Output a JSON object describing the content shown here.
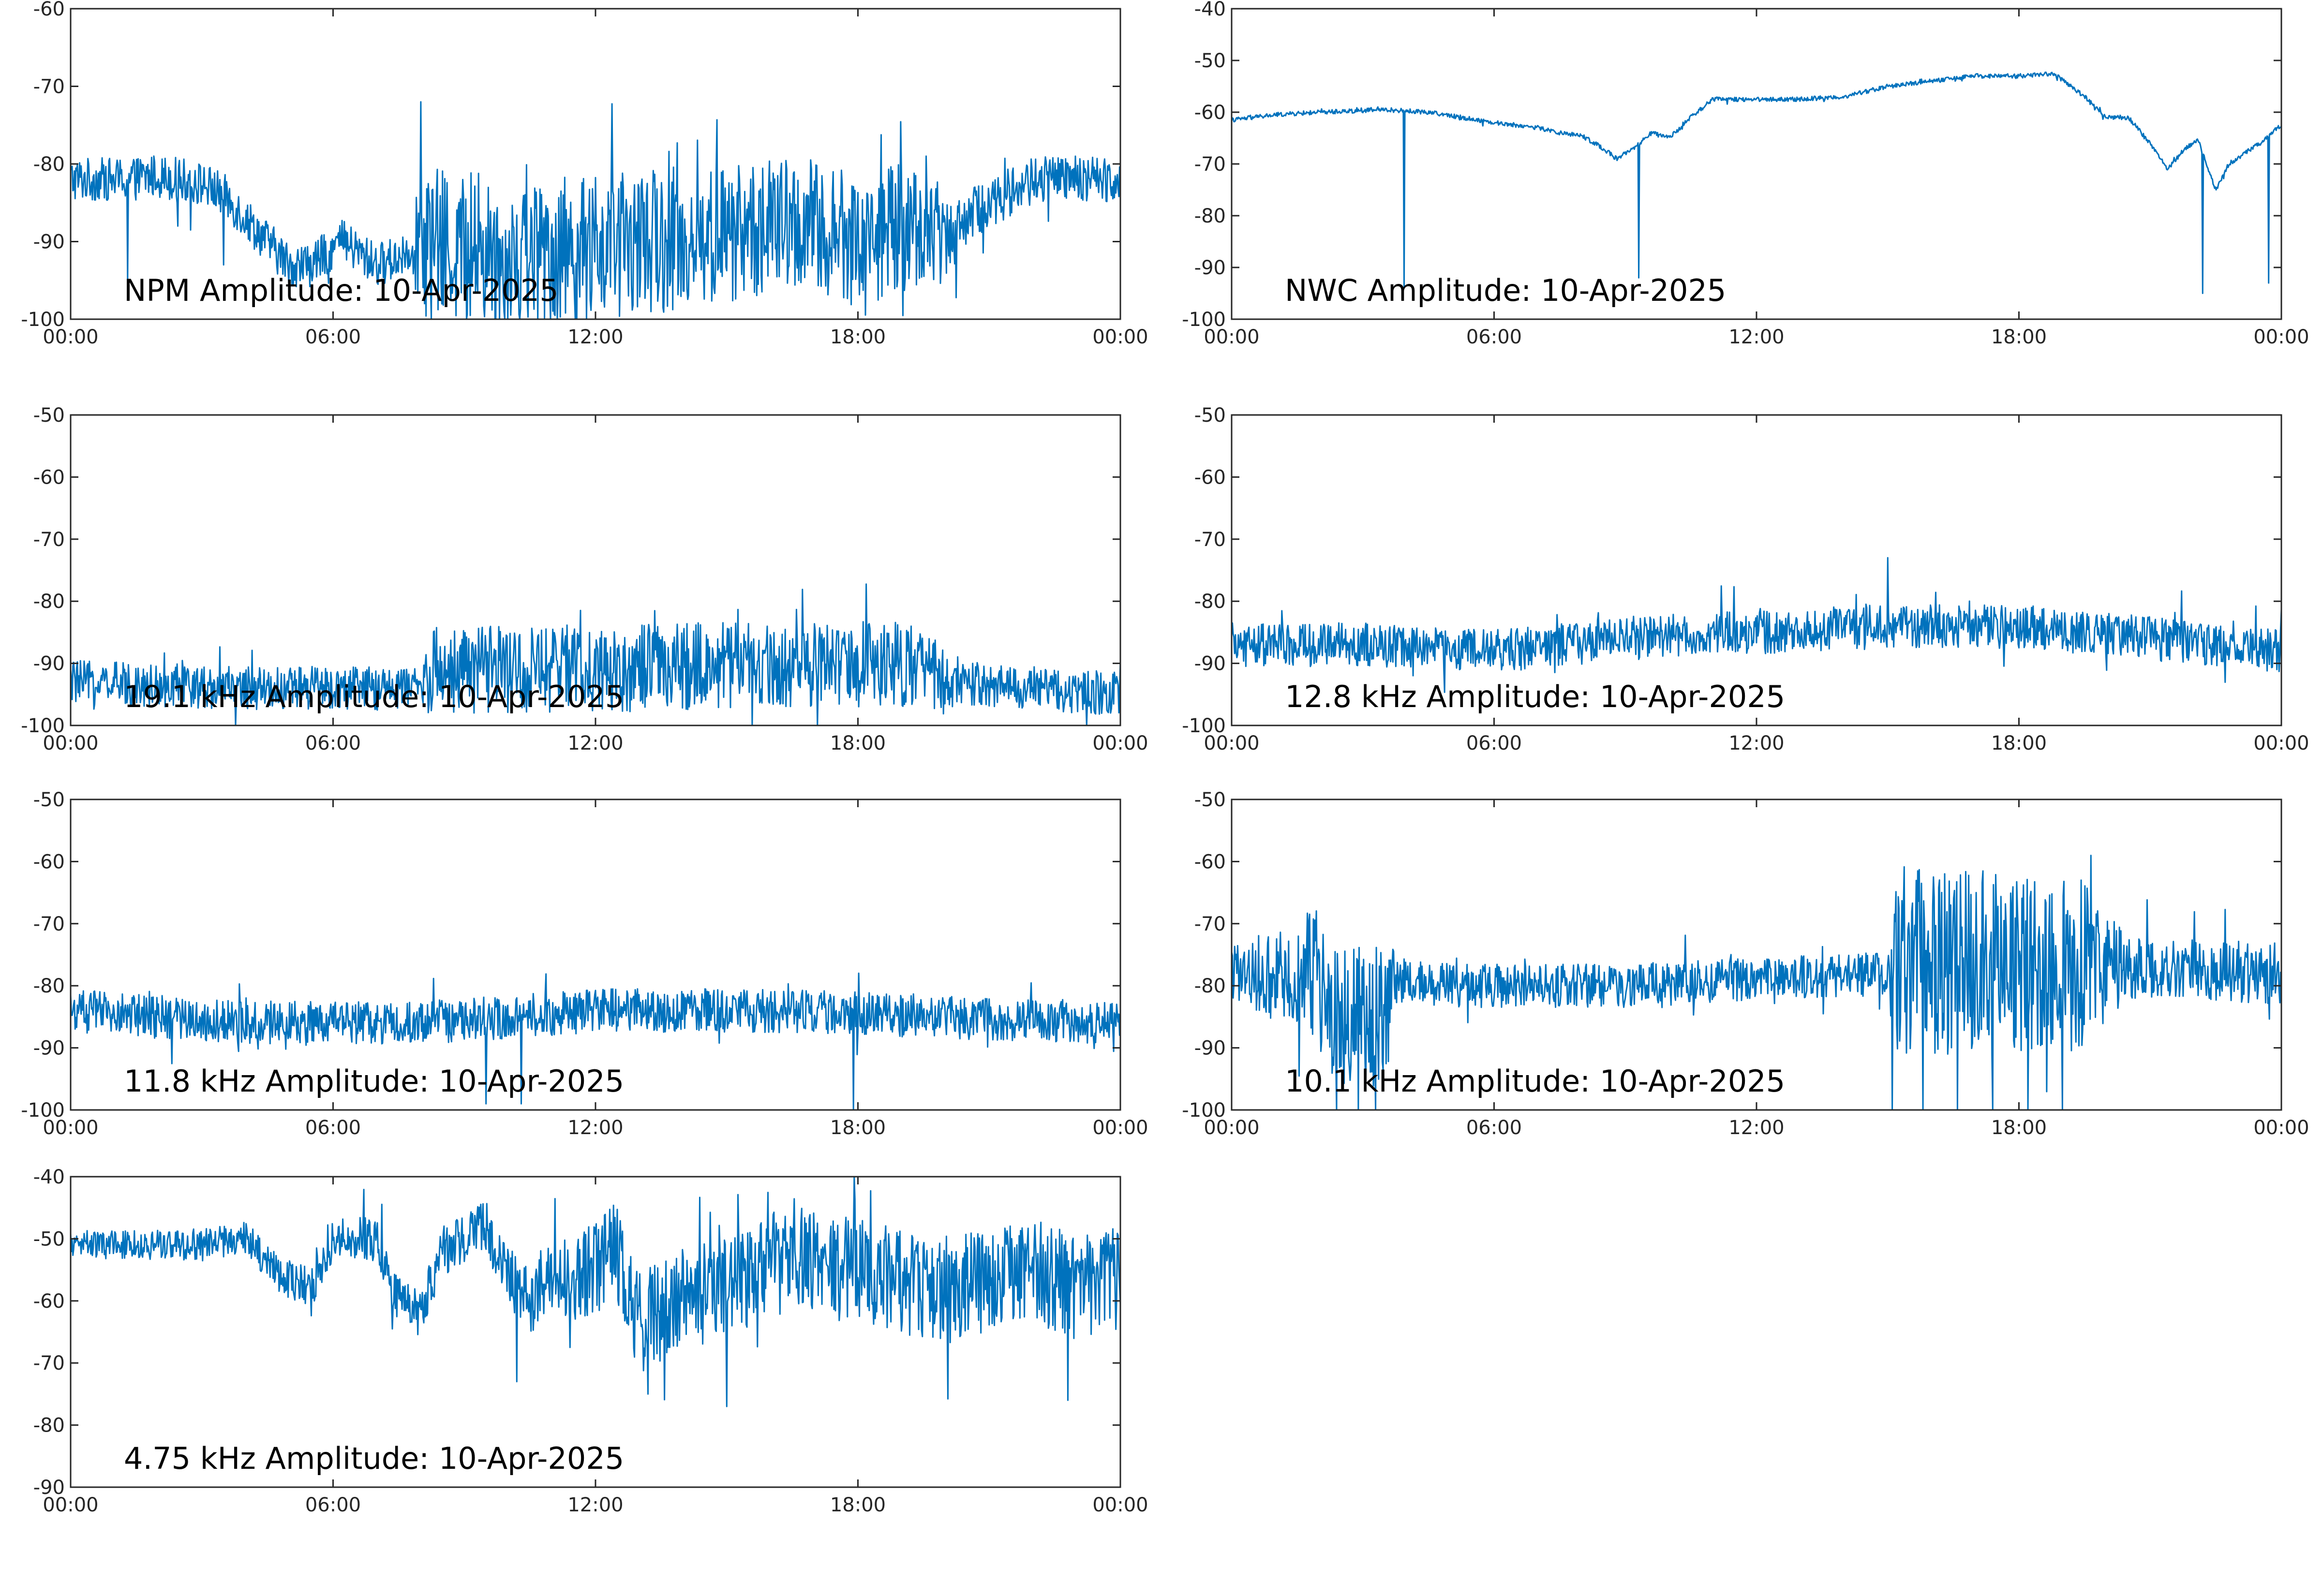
{
  "colors": {
    "series": "#0072bd",
    "axis": "#262626",
    "background": "#ffffff"
  },
  "chart_data": [
    {
      "type": "line",
      "title": "NPM Amplitude: 10-Apr-2025",
      "x_ticks": [
        "00:00",
        "06:00",
        "12:00",
        "18:00",
        "00:00"
      ],
      "xlim_hours": [
        0,
        24
      ],
      "ylim": [
        -100,
        -60
      ],
      "y_ticks": [
        -60,
        -70,
        -80,
        -90,
        -100
      ],
      "grid": false,
      "series": [
        {
          "baseline": [
            [
              0,
              -82
            ],
            [
              1.3,
              -82
            ],
            [
              2,
              -81.5
            ],
            [
              3,
              -82.5
            ],
            [
              3.5,
              -84
            ],
            [
              4,
              -87
            ],
            [
              4.5,
              -90
            ],
            [
              5,
              -93
            ],
            [
              5.5,
              -93
            ],
            [
              6.2,
              -90
            ],
            [
              7,
              -93
            ],
            [
              7.5,
              -92
            ],
            [
              8,
              -90
            ],
            [
              9,
              -91
            ],
            [
              10,
              -92
            ],
            [
              11,
              -91
            ],
            [
              12,
              -91
            ],
            [
              13,
              -90
            ],
            [
              14,
              -90
            ],
            [
              15,
              -89
            ],
            [
              16,
              -88
            ],
            [
              17,
              -88
            ],
            [
              17.5,
              -89
            ],
            [
              18,
              -90
            ],
            [
              19,
              -88
            ],
            [
              20,
              -89
            ],
            [
              21,
              -85
            ],
            [
              22,
              -82
            ],
            [
              23,
              -82
            ],
            [
              24,
              -82
            ]
          ],
          "noise": [
            [
              0,
              4
            ],
            [
              7.8,
              4
            ],
            [
              8,
              14
            ],
            [
              19.5,
              12
            ],
            [
              20.5,
              5
            ],
            [
              24,
              4
            ]
          ],
          "spikes": [
            [
              1.3,
              -95
            ],
            [
              3.5,
              -93
            ],
            [
              8.0,
              -72
            ],
            [
              8.1,
              -98
            ]
          ]
        }
      ]
    },
    {
      "type": "line",
      "title": "NWC Amplitude: 10-Apr-2025",
      "x_ticks": [
        "00:00",
        "06:00",
        "12:00",
        "18:00",
        "00:00"
      ],
      "xlim_hours": [
        0,
        24
      ],
      "ylim": [
        -100,
        -40
      ],
      "y_ticks": [
        -40,
        -50,
        -60,
        -70,
        -80,
        -90,
        -100
      ],
      "grid": false,
      "series": [
        {
          "baseline": [
            [
              0,
              -61.5
            ],
            [
              1,
              -60.5
            ],
            [
              2,
              -60
            ],
            [
              3.5,
              -59.5
            ],
            [
              4.5,
              -60
            ],
            [
              6,
              -62
            ],
            [
              7,
              -63
            ],
            [
              7.5,
              -64
            ],
            [
              8,
              -64.5
            ],
            [
              8.5,
              -67
            ],
            [
              8.8,
              -69
            ],
            [
              9.2,
              -67
            ],
            [
              9.6,
              -64
            ],
            [
              10,
              -65
            ],
            [
              10.5,
              -61
            ],
            [
              11,
              -57.5
            ],
            [
              12,
              -57.5
            ],
            [
              13,
              -57.5
            ],
            [
              14,
              -57
            ],
            [
              15,
              -55
            ],
            [
              16,
              -54
            ],
            [
              17,
              -53
            ],
            [
              18,
              -53
            ],
            [
              18.8,
              -52.5
            ],
            [
              19.5,
              -57
            ],
            [
              20,
              -61
            ],
            [
              20.5,
              -61
            ],
            [
              21,
              -66
            ],
            [
              21.4,
              -71
            ],
            [
              21.8,
              -67
            ],
            [
              22.1,
              -65.5
            ],
            [
              22.5,
              -75
            ],
            [
              22.8,
              -70
            ],
            [
              23.5,
              -66
            ],
            [
              24,
              -62.5
            ]
          ],
          "noise": [
            [
              0,
              0.6
            ],
            [
              24,
              0.6
            ]
          ],
          "spikes": [
            [
              3.95,
              -94
            ],
            [
              9.3,
              -92
            ],
            [
              22.2,
              -95
            ],
            [
              23.7,
              -93
            ]
          ]
        }
      ]
    },
    {
      "type": "line",
      "title": "19.1 kHz Amplitude: 10-Apr-2025",
      "x_ticks": [
        "00:00",
        "06:00",
        "12:00",
        "18:00",
        "00:00"
      ],
      "xlim_hours": [
        0,
        24
      ],
      "ylim": [
        -100,
        -50
      ],
      "y_ticks": [
        -50,
        -60,
        -70,
        -80,
        -90,
        -100
      ],
      "grid": false,
      "series": [
        {
          "baseline": [
            [
              0,
              -93
            ],
            [
              4,
              -94
            ],
            [
              8,
              -94
            ],
            [
              8.2,
              -91
            ],
            [
              12,
              -91
            ],
            [
              16,
              -90
            ],
            [
              19,
              -90
            ],
            [
              20,
              -93
            ],
            [
              24,
              -95
            ]
          ],
          "noise": [
            [
              0,
              5
            ],
            [
              8,
              5
            ],
            [
              8.2,
              10
            ],
            [
              19.5,
              10
            ],
            [
              20.5,
              5
            ],
            [
              24,
              5
            ]
          ],
          "spikes": []
        }
      ]
    },
    {
      "type": "line",
      "title": "12.8 kHz Amplitude: 10-Apr-2025",
      "x_ticks": [
        "00:00",
        "06:00",
        "12:00",
        "18:00",
        "00:00"
      ],
      "xlim_hours": [
        0,
        24
      ],
      "ylim": [
        -100,
        -50
      ],
      "y_ticks": [
        -50,
        -60,
        -70,
        -80,
        -90,
        -100
      ],
      "grid": false,
      "series": [
        {
          "baseline": [
            [
              0,
              -87
            ],
            [
              3,
              -87
            ],
            [
              6,
              -88
            ],
            [
              9,
              -86
            ],
            [
              12,
              -85
            ],
            [
              15,
              -84
            ],
            [
              18,
              -84
            ],
            [
              21,
              -86
            ],
            [
              24,
              -88
            ]
          ],
          "noise": [
            [
              0,
              5
            ],
            [
              24,
              5
            ]
          ],
          "spikes": [
            [
              15.0,
              -73
            ]
          ]
        }
      ]
    },
    {
      "type": "line",
      "title": "11.8 kHz Amplitude: 10-Apr-2025",
      "x_ticks": [
        "00:00",
        "06:00",
        "12:00",
        "18:00",
        "00:00"
      ],
      "xlim_hours": [
        0,
        24
      ],
      "ylim": [
        -100,
        -50
      ],
      "y_ticks": [
        -50,
        -60,
        -70,
        -80,
        -90,
        -100
      ],
      "grid": false,
      "series": [
        {
          "baseline": [
            [
              0,
              -84
            ],
            [
              4,
              -86
            ],
            [
              8,
              -86
            ],
            [
              12,
              -84
            ],
            [
              16,
              -84
            ],
            [
              20,
              -85
            ],
            [
              24,
              -86
            ]
          ],
          "noise": [
            [
              0,
              5
            ],
            [
              24,
              5
            ]
          ],
          "spikes": [
            [
              9.5,
              -99
            ],
            [
              10.3,
              -99
            ],
            [
              17.9,
              -100
            ]
          ]
        }
      ]
    },
    {
      "type": "line",
      "title": "10.1 kHz Amplitude: 10-Apr-2025",
      "x_ticks": [
        "00:00",
        "06:00",
        "12:00",
        "18:00",
        "00:00"
      ],
      "xlim_hours": [
        0,
        24
      ],
      "ylim": [
        -100,
        -50
      ],
      "y_ticks": [
        -50,
        -60,
        -70,
        -80,
        -90,
        -100
      ],
      "grid": false,
      "series": [
        {
          "baseline": [
            [
              0,
              -78
            ],
            [
              2,
              -78
            ],
            [
              2.2,
              -85
            ],
            [
              3.5,
              -85
            ],
            [
              3.7,
              -79
            ],
            [
              5,
              -80
            ],
            [
              9,
              -80
            ],
            [
              12,
              -79
            ],
            [
              15,
              -78
            ],
            [
              15.2,
              -76
            ],
            [
              20,
              -77
            ],
            [
              24,
              -78
            ]
          ],
          "noise": [
            [
              0,
              6
            ],
            [
              2.2,
              16
            ],
            [
              3.6,
              16
            ],
            [
              3.8,
              5
            ],
            [
              15,
              5
            ],
            [
              15.2,
              22
            ],
            [
              19.5,
              20
            ],
            [
              20.5,
              7
            ],
            [
              24,
              7
            ]
          ],
          "spikes": [
            [
              2.4,
              -100
            ],
            [
              2.9,
              -100
            ],
            [
              3.3,
              -100
            ],
            [
              15.1,
              -100
            ],
            [
              15.8,
              -100
            ],
            [
              16.6,
              -100
            ],
            [
              17.4,
              -100
            ],
            [
              18.2,
              -100
            ],
            [
              19.0,
              -100
            ]
          ]
        }
      ]
    },
    {
      "type": "line",
      "title": "4.75 kHz Amplitude: 10-Apr-2025",
      "x_ticks": [
        "00:00",
        "06:00",
        "12:00",
        "18:00",
        "00:00"
      ],
      "xlim_hours": [
        0,
        24
      ],
      "ylim": [
        -90,
        -40
      ],
      "y_ticks": [
        -40,
        -50,
        -60,
        -70,
        -80,
        -90
      ],
      "grid": false,
      "series": [
        {
          "baseline": [
            [
              0,
              -51
            ],
            [
              3,
              -51
            ],
            [
              4,
              -50
            ],
            [
              4.8,
              -56
            ],
            [
              5.5,
              -58
            ],
            [
              6,
              -50
            ],
            [
              7,
              -50
            ],
            [
              7.5,
              -60
            ],
            [
              8,
              -62
            ],
            [
              8.5,
              -52
            ],
            [
              9.5,
              -48
            ],
            [
              10,
              -56
            ],
            [
              10.5,
              -60
            ],
            [
              11,
              -55
            ],
            [
              11.5,
              -57
            ],
            [
              12.5,
              -52
            ],
            [
              13,
              -64
            ],
            [
              14,
              -60
            ],
            [
              15,
              -58
            ],
            [
              16,
              -54
            ],
            [
              17,
              -53
            ],
            [
              18,
              -55
            ],
            [
              19,
              -57
            ],
            [
              20,
              -58
            ],
            [
              21,
              -57
            ],
            [
              22,
              -55
            ],
            [
              23,
              -58
            ],
            [
              24,
              -56
            ]
          ],
          "noise": [
            [
              0,
              3
            ],
            [
              4,
              4
            ],
            [
              9.5,
              6
            ],
            [
              12.8,
              12
            ],
            [
              24,
              12
            ]
          ],
          "spikes": [
            [
              15.0,
              -77
            ],
            [
              22.8,
              -76
            ],
            [
              10.2,
              -73
            ],
            [
              13.2,
              -75
            ]
          ]
        }
      ]
    }
  ]
}
